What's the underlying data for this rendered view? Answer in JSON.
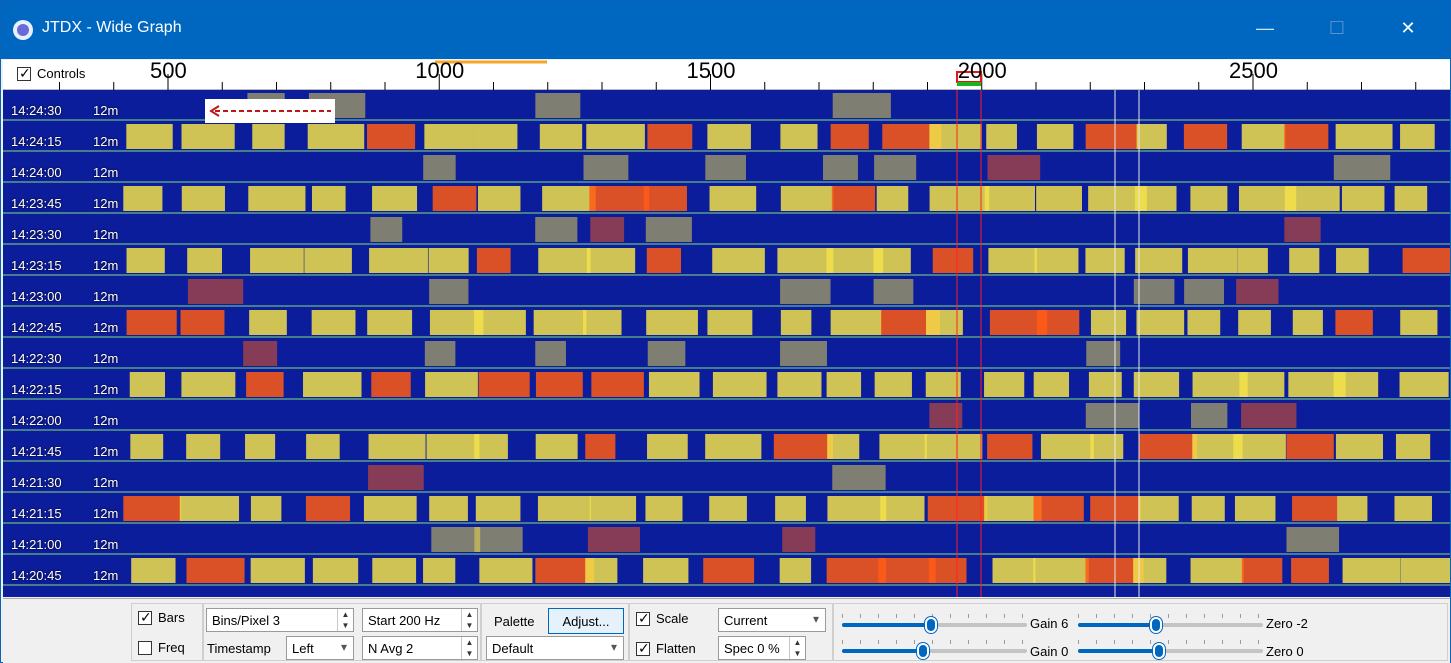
{
  "window": {
    "title": "JTDX - Wide Graph",
    "minimize": "—",
    "maximize": "☐",
    "close": "✕",
    "icon": "app-compass-icon"
  },
  "scale": {
    "controls_label": "Controls",
    "controls_checked": true,
    "labels": [
      "500",
      "1000",
      "1500",
      "2000",
      "2500"
    ]
  },
  "waterfall": {
    "timestamps": [
      "14:24:30",
      "14:24:15",
      "14:24:00",
      "14:23:45",
      "14:23:30",
      "14:23:15",
      "14:23:00",
      "14:22:45",
      "14:22:30",
      "14:22:15",
      "14:22:00",
      "14:21:45",
      "14:21:30",
      "14:21:15",
      "14:21:00",
      "14:20:45"
    ],
    "band": "12m",
    "colors": {
      "background": "#0c1d9b",
      "signal_hot": "#ff5a14",
      "signal_warm": "#f2e04a",
      "divider": "#7fe07f"
    }
  },
  "panel": {
    "bars": {
      "label": "Bars",
      "checked": true
    },
    "freq": {
      "label": "Freq",
      "checked": false
    },
    "bins_pixel": {
      "label": "Bins/Pixel",
      "value": "3"
    },
    "timestamp": {
      "label": "Timestamp",
      "value": "Left"
    },
    "start": {
      "value": "Start 200 Hz"
    },
    "navg": {
      "value": "N Avg 2"
    },
    "palette": {
      "label": "Palette",
      "adjust": "Adjust...",
      "value": "Default"
    },
    "scale": {
      "label": "Scale",
      "checked": true,
      "value": "Current"
    },
    "flatten": {
      "label": "Flatten",
      "checked": true,
      "spec": "Spec 0 %"
    },
    "gain_top": {
      "label": "Gain 6",
      "level": 0.48
    },
    "gain_bottom": {
      "label": "Gain 0",
      "level": 0.44
    },
    "zero_top": {
      "label": "Zero -2",
      "level": 0.42
    },
    "zero_bottom": {
      "label": "Zero 0",
      "level": 0.44
    }
  }
}
